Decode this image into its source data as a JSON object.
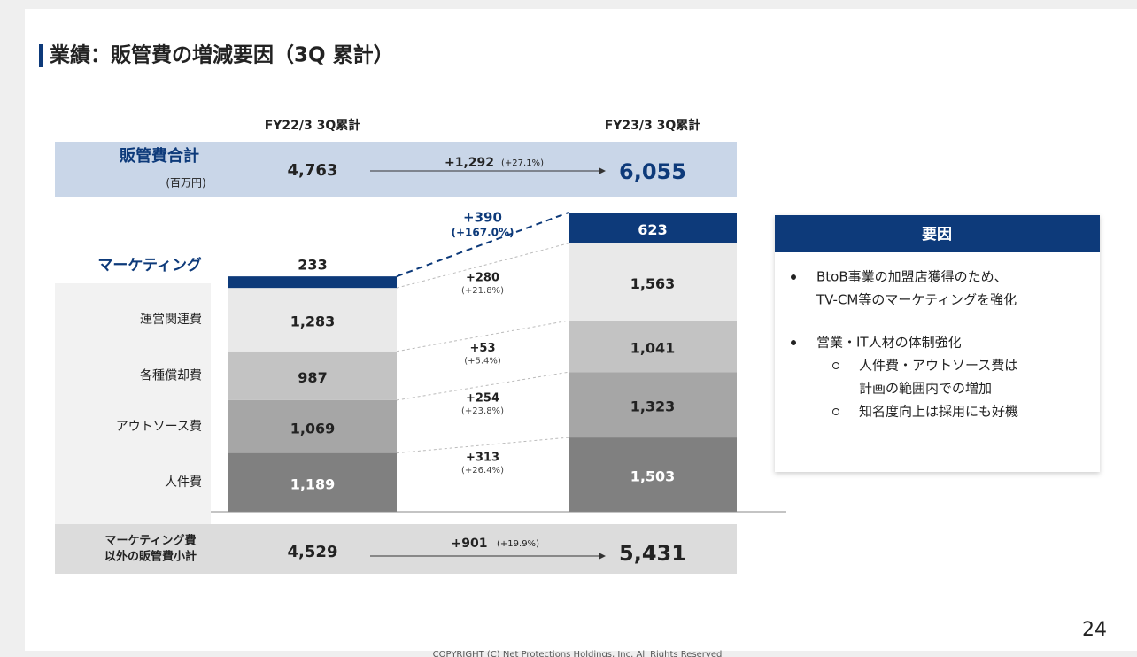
{
  "title": "業績：販管費の増減要因（3Q 累計）",
  "total_row": {
    "label": "販管費合計",
    "unit": "(百万円)",
    "from": "4,763",
    "change": "+1,292",
    "change_pct": "(+27.1%)",
    "to": "6,055"
  },
  "subtotal_row": {
    "label": [
      "マーケティング費",
      "以外の販管費小計"
    ],
    "from": "4,529",
    "change": "+901",
    "change_pct": "(+19.9%)",
    "to": "5,431"
  },
  "chart_data": {
    "type": "stacked_bar",
    "categories": [
      "FY22/3 3Q累計",
      "FY23/3 3Q累計"
    ],
    "series": [
      {
        "name": "人件費",
        "color": "#808080",
        "values": [
          1189,
          1503
        ],
        "value_labels": [
          "1,189",
          "1,503"
        ],
        "change": "+313",
        "change_pct": "(+26.4%)"
      },
      {
        "name": "アウトソース費",
        "color": "#a6a6a6",
        "values": [
          1069,
          1323
        ],
        "value_labels": [
          "1,069",
          "1,323"
        ],
        "change": "+254",
        "change_pct": "(+23.8%)"
      },
      {
        "name": "各種償却費",
        "color": "#c3c3c3",
        "values": [
          987,
          1041
        ],
        "value_labels": [
          "987",
          "1,041"
        ],
        "change": "+53",
        "change_pct": "(+5.4%)"
      },
      {
        "name": "運営関連費",
        "color": "#e9e9e9",
        "values": [
          1283,
          1563
        ],
        "value_labels": [
          "1,283",
          "1,563"
        ],
        "change": "+280",
        "change_pct": "(+21.8%)"
      },
      {
        "name": "マーケティング",
        "color": "#0d3a7a",
        "values": [
          233,
          623
        ],
        "value_labels": [
          "233",
          "623"
        ],
        "change": "+390",
        "change_pct": "(+167.0%)"
      }
    ]
  },
  "factors": {
    "title": "要因",
    "items": [
      {
        "lines": [
          "BtoB事業の加盟店獲得のため、",
          "TV-CM等のマーケティングを強化"
        ]
      },
      {
        "lines": [
          "営業・IT人材の体制強化"
        ],
        "subitems": [
          {
            "lines": [
              "人件費・アウトソース費は",
              "計画の範囲内での増加"
            ]
          },
          {
            "lines": [
              "知名度向上は採用にも好機"
            ]
          }
        ]
      }
    ]
  },
  "page_number": "24",
  "copyright": "COPYRIGHT (C) Net Protections Holdings, Inc. All Rights Reserved"
}
